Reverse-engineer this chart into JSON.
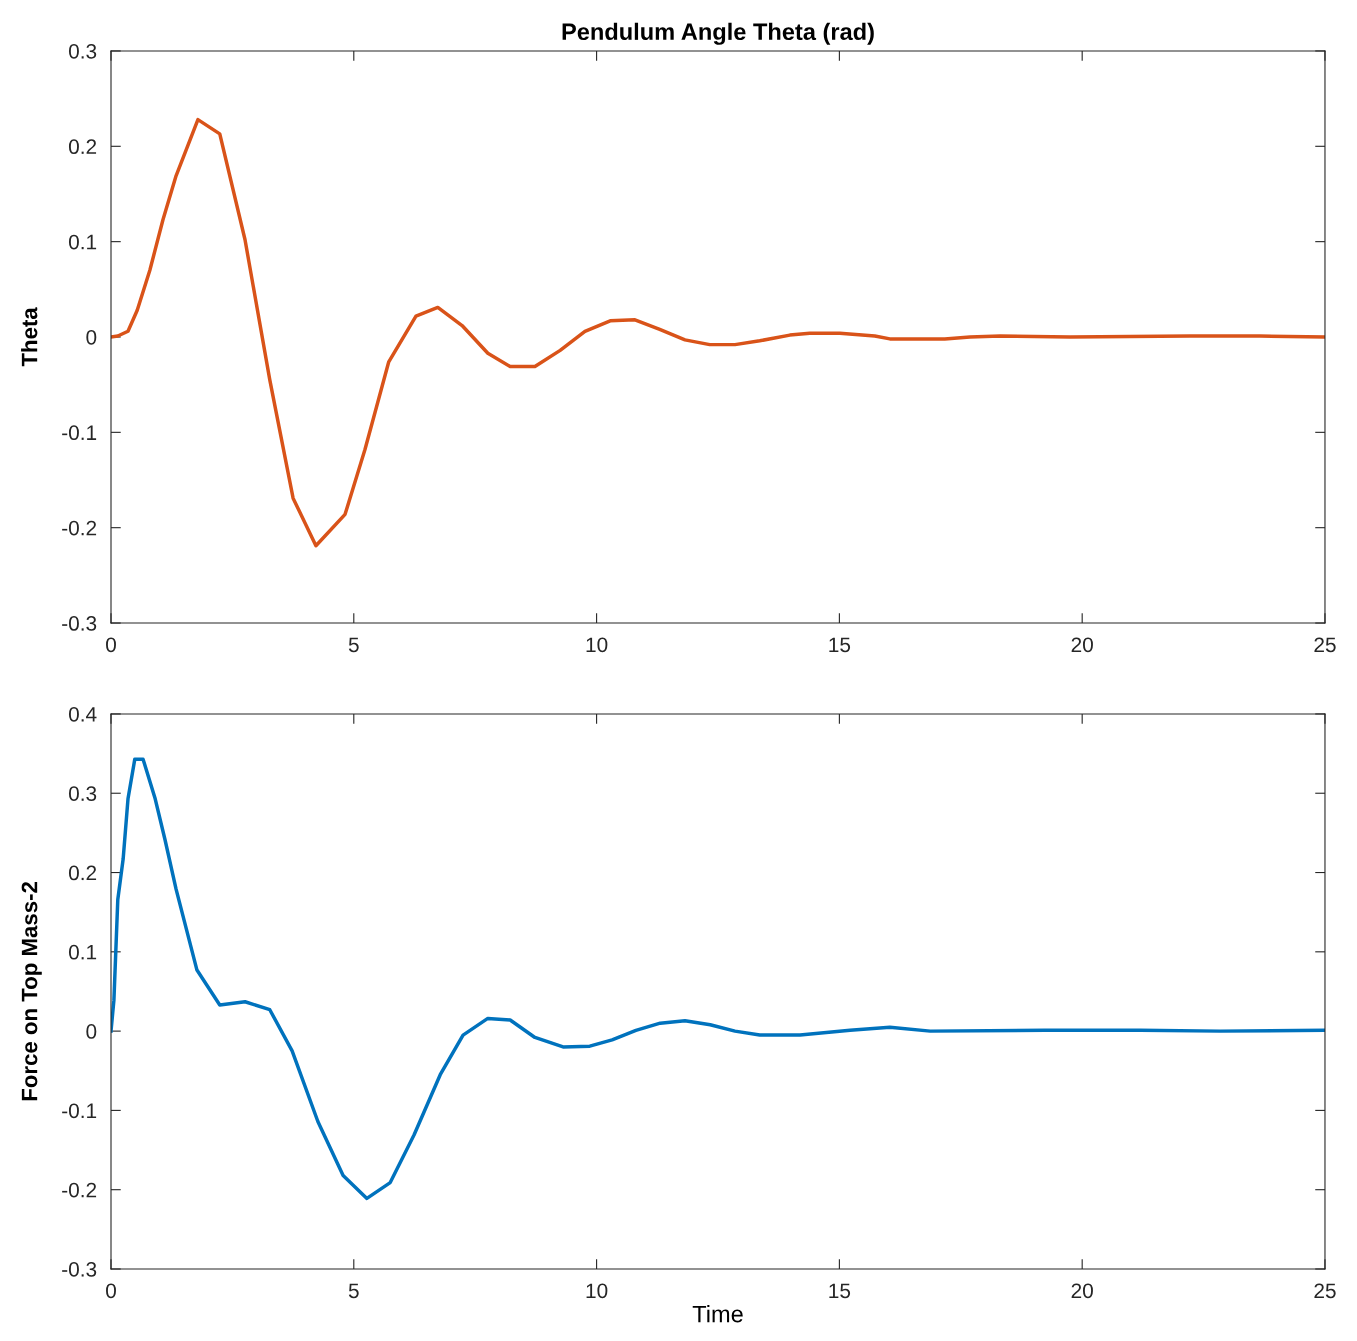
{
  "chart_data": [
    {
      "type": "line",
      "title": "Pendulum Angle Theta (rad)",
      "ylabel": "Theta",
      "xlim": [
        0,
        25
      ],
      "xticks": [
        0,
        5,
        10,
        15,
        20,
        25
      ],
      "ylim": [
        -0.3,
        0.3
      ],
      "yticks": [
        -0.3,
        -0.2,
        -0.1,
        0,
        0.1,
        0.2,
        0.3
      ],
      "series": [
        {
          "color": "#d95319",
          "x": [
            0,
            0.14,
            0.35,
            0.54,
            0.8,
            1.07,
            1.34,
            1.79,
            2.24,
            2.76,
            3.27,
            3.75,
            4.22,
            4.82,
            5.23,
            5.72,
            6.28,
            6.73,
            7.23,
            7.76,
            8.22,
            8.73,
            9.25,
            9.76,
            10.28,
            10.79,
            11.3,
            11.82,
            12.33,
            12.85,
            13.36,
            13.98,
            14.39,
            15.01,
            15.73,
            16.04,
            17.17,
            17.69,
            18.31,
            19.75,
            22.22,
            23.66,
            25
          ],
          "values": [
            0,
            0.001,
            0.006,
            0.028,
            0.07,
            0.123,
            0.169,
            0.228,
            0.213,
            0.102,
            -0.045,
            -0.169,
            -0.219,
            -0.186,
            -0.118,
            -0.026,
            0.022,
            0.031,
            0.012,
            -0.017,
            -0.031,
            -0.031,
            -0.014,
            0.006,
            0.017,
            0.018,
            0.008,
            -0.003,
            -0.008,
            -0.008,
            -0.004,
            0.002,
            0.004,
            0.004,
            0.001,
            -0.002,
            -0.002,
            0,
            0.001,
            0,
            0.001,
            0.001,
            0
          ]
        }
      ]
    },
    {
      "type": "line",
      "xlabel": "Time",
      "ylabel": "Force on Top Mass-2",
      "xlim": [
        0,
        25
      ],
      "xticks": [
        0,
        5,
        10,
        15,
        20,
        25
      ],
      "ylim": [
        -0.3,
        0.4
      ],
      "yticks": [
        -0.3,
        -0.2,
        -0.1,
        0,
        0.1,
        0.2,
        0.3,
        0.4
      ],
      "series": [
        {
          "color": "#0072bd",
          "x": [
            0,
            0.06,
            0.14,
            0.25,
            0.35,
            0.49,
            0.66,
            0.91,
            1.11,
            1.34,
            1.77,
            2.24,
            2.76,
            3.27,
            3.73,
            4.26,
            4.78,
            5.27,
            5.75,
            6.24,
            6.78,
            7.25,
            7.76,
            8.22,
            8.73,
            9.31,
            9.86,
            10.32,
            10.81,
            11.31,
            11.82,
            12.34,
            12.85,
            13.36,
            14.19,
            15.22,
            16.04,
            16.87,
            19.23,
            21.19,
            22.84,
            25
          ],
          "values": [
            0,
            0.039,
            0.166,
            0.217,
            0.293,
            0.343,
            0.343,
            0.293,
            0.242,
            0.179,
            0.077,
            0.033,
            0.037,
            0.027,
            -0.025,
            -0.114,
            -0.182,
            -0.211,
            -0.191,
            -0.131,
            -0.055,
            -0.005,
            0.016,
            0.014,
            -0.008,
            -0.02,
            -0.019,
            -0.011,
            0.001,
            0.01,
            0.013,
            0.008,
            0,
            -0.005,
            -0.005,
            0.001,
            0.005,
            0,
            0.001,
            0.001,
            0,
            0.001
          ]
        }
      ]
    }
  ]
}
